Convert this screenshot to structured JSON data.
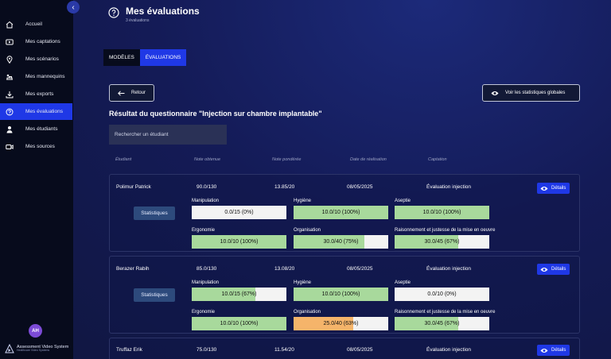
{
  "sidebar": {
    "items": [
      {
        "label": "Accueil",
        "icon": "home-icon"
      },
      {
        "label": "Mes captations",
        "icon": "video-icon"
      },
      {
        "label": "Mes scénarios",
        "icon": "location-icon"
      },
      {
        "label": "Mes mannequins",
        "icon": "mannequin-icon"
      },
      {
        "label": "Mes exports",
        "icon": "download-icon"
      },
      {
        "label": "Mes évaluations",
        "icon": "help-circle-icon",
        "active": true
      },
      {
        "label": "Mes étudiants",
        "icon": "user-icon"
      },
      {
        "label": "Mes sources",
        "icon": "camera-icon"
      }
    ],
    "avatar": "AH",
    "logo_line1": "Assessment Video System",
    "logo_line2": "Healthcare Video Systems"
  },
  "header": {
    "title": "Mes évaluations",
    "subtitle": "3 évaluations"
  },
  "tabs": [
    {
      "label": "MODÈLES",
      "active": false
    },
    {
      "label": "ÉVALUATIONS",
      "active": true
    }
  ],
  "actions": {
    "back": "Retour",
    "global_stats": "Voir les statistiques globales"
  },
  "result_title": "Résultat du questionnaire \"Injection sur chambre implantable\"",
  "search": {
    "placeholder": "Rechercher un étudiant"
  },
  "columns": [
    "Étudiant",
    "Note obtenue",
    "Note pondérée",
    "Date de réalisation",
    "Captation"
  ],
  "stats_label": "Statistiques",
  "details_label": "Détails",
  "colors": {
    "accent": "#1f38e6",
    "good": "#a8d99c",
    "warn": "#f5b46a",
    "bar_bg": "#f3f3f3"
  },
  "rows": [
    {
      "student": "Polimur Patrick",
      "score": "90.0/130",
      "weighted": "13.85/20",
      "date": "08/05/2025",
      "capture": "Évaluation injection",
      "metrics": [
        {
          "label": "Manipulation",
          "value": "0.0/15 (0%)",
          "fraction": 0.0
        },
        {
          "label": "Hygiène",
          "value": "10.0/10 (100%)",
          "fraction": 1.0
        },
        {
          "label": "Aseptie",
          "value": "10.0/10 (100%)",
          "fraction": 1.0
        },
        {
          "label": "Ergonomie",
          "value": "10.0/10 (100%)",
          "fraction": 1.0
        },
        {
          "label": "Organisation",
          "value": "30.0/40 (75%)",
          "fraction": 0.75
        },
        {
          "label": "Raisonnement et justesse de la mise en oeuvre",
          "value": "30.0/45 (67%)",
          "fraction": 0.67
        }
      ]
    },
    {
      "student": "Berazer Rabih",
      "score": "85.0/130",
      "weighted": "13.08/20",
      "date": "08/05/2025",
      "capture": "Évaluation injection",
      "metrics": [
        {
          "label": "Manipulation",
          "value": "10.0/15 (67%)",
          "fraction": 0.67
        },
        {
          "label": "Hygiène",
          "value": "10.0/10 (100%)",
          "fraction": 1.0
        },
        {
          "label": "Aseptie",
          "value": "0.0/10 (0%)",
          "fraction": 0.0
        },
        {
          "label": "Ergonomie",
          "value": "10.0/10 (100%)",
          "fraction": 1.0
        },
        {
          "label": "Organisation",
          "value": "25.0/40 (63%)",
          "fraction": 0.63,
          "warn": true
        },
        {
          "label": "Raisonnement et justesse de la mise en oeuvre",
          "value": "30.0/45 (67%)",
          "fraction": 0.67
        }
      ]
    },
    {
      "student": "Truffaz Erik",
      "score": "75.0/130",
      "weighted": "11.54/20",
      "date": "08/05/2025",
      "capture": "Évaluation injection",
      "metrics": []
    }
  ]
}
